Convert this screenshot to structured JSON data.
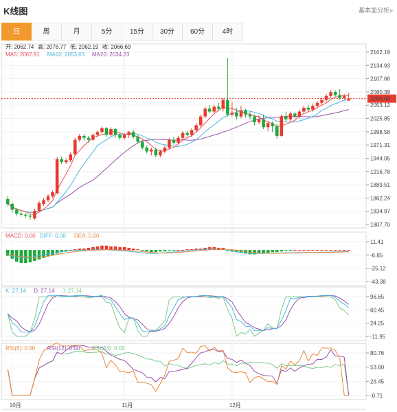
{
  "header": {
    "title": "K线图",
    "link": "基本面分析»"
  },
  "tabs": [
    {
      "label": "日",
      "active": true
    },
    {
      "label": "周",
      "active": false
    },
    {
      "label": "月",
      "active": false
    },
    {
      "label": "5分",
      "active": false
    },
    {
      "label": "15分",
      "active": false
    },
    {
      "label": "30分",
      "active": false
    },
    {
      "label": "60分",
      "active": false
    },
    {
      "label": "4时",
      "active": false
    }
  ],
  "colors": {
    "up": "#e63b2e",
    "down": "#20a83a",
    "ma5": "#e84d5b",
    "ma10": "#48b7e0",
    "ma20": "#9b4fa8",
    "macd": "#e84d5b",
    "diff": "#48b7e0",
    "dea": "#e8883a",
    "k": "#48b7e0",
    "d": "#9b4fa8",
    "j": "#7cc98a",
    "rsi6": "#e8883a",
    "rsi12": "#9b4fa8",
    "rsi24": "#7cc98a",
    "accent": "#f29a2e"
  },
  "legend": {
    "ohlc": [
      {
        "label": "开: 2062.74"
      },
      {
        "label": "高: 2078.77"
      },
      {
        "label": "低: 2062.19"
      },
      {
        "label": "收: 2066.69"
      }
    ],
    "ma": [
      {
        "label": "MA5: 2067.91"
      },
      {
        "label": "MA10: 2053.63"
      },
      {
        "label": "MA20: 2034.23"
      }
    ],
    "macd": [
      {
        "label": "MACD: 0.00"
      },
      {
        "label": "DIFF: 0.00"
      },
      {
        "label": "DEA: 0.00"
      }
    ],
    "kdj": [
      {
        "label": "K: 27.14"
      },
      {
        "label": "D: 27.14"
      },
      {
        "label": "J: 27.14"
      }
    ],
    "rsi": [
      {
        "label": "RSI(6): 0.00"
      },
      {
        "label": "RSI(12): 0.00"
      },
      {
        "label": "RSI(24): 0.00"
      }
    ]
  },
  "chart_data": [
    {
      "type": "candlestick",
      "ylim": [
        1807.7,
        2162.19
      ],
      "ytick_labels": [
        "2162.19",
        "2134.93",
        "2107.66",
        "2080.39",
        "2053.12",
        "2025.85",
        "1998.58",
        "1971.31",
        "1944.05",
        "1916.78",
        "1889.51",
        "1862.24",
        "1834.97",
        "1807.70"
      ],
      "last_price": "2066.69",
      "last_price_value": 2066.69,
      "xtick_labels": [
        "10月",
        "11月",
        "12月"
      ],
      "xtick_index": [
        1,
        26,
        50
      ],
      "candles": [
        [
          1860,
          1850,
          1866,
          1845
        ],
        [
          1850,
          1838,
          1854,
          1832
        ],
        [
          1838,
          1830,
          1842,
          1826
        ],
        [
          1830,
          1828,
          1834,
          1824
        ],
        [
          1828,
          1826,
          1832,
          1822
        ],
        [
          1826,
          1824,
          1830,
          1818
        ],
        [
          1820,
          1836,
          1840,
          1818
        ],
        [
          1836,
          1852,
          1856,
          1834
        ],
        [
          1850,
          1858,
          1862,
          1846
        ],
        [
          1858,
          1866,
          1870,
          1854
        ],
        [
          1866,
          1874,
          1878,
          1862
        ],
        [
          1872,
          1942,
          1946,
          1870
        ],
        [
          1942,
          1936,
          1948,
          1932
        ],
        [
          1936,
          1940,
          1944,
          1932
        ],
        [
          1940,
          1952,
          1956,
          1936
        ],
        [
          1952,
          1982,
          1986,
          1950
        ],
        [
          1982,
          1990,
          1994,
          1978
        ],
        [
          1990,
          1986,
          1994,
          1980
        ],
        [
          1986,
          1982,
          1990,
          1976
        ],
        [
          1982,
          1992,
          1996,
          1980
        ],
        [
          1992,
          1998,
          2002,
          1988
        ],
        [
          1998,
          2006,
          2010,
          1994
        ],
        [
          2006,
          1992,
          2008,
          1988
        ],
        [
          1992,
          2004,
          2008,
          1990
        ],
        [
          2004,
          1992,
          2006,
          1986
        ],
        [
          1992,
          1986,
          1996,
          1982
        ],
        [
          1986,
          1992,
          1996,
          1982
        ],
        [
          1992,
          1998,
          2000,
          1986
        ],
        [
          1998,
          1988,
          2002,
          1984
        ],
        [
          1988,
          1978,
          1992,
          1974
        ],
        [
          1978,
          1966,
          1982,
          1962
        ],
        [
          1966,
          1958,
          1970,
          1954
        ],
        [
          1958,
          1962,
          1966,
          1950
        ],
        [
          1962,
          1950,
          1966,
          1946
        ],
        [
          1950,
          1958,
          1962,
          1946
        ],
        [
          1958,
          1966,
          1970,
          1954
        ],
        [
          1966,
          1982,
          1986,
          1962
        ],
        [
          1982,
          1976,
          1988,
          1972
        ],
        [
          1976,
          1986,
          1990,
          1972
        ],
        [
          1986,
          1996,
          2000,
          1982
        ],
        [
          1996,
          1992,
          2000,
          1988
        ],
        [
          1992,
          2002,
          2006,
          1988
        ],
        [
          2002,
          2012,
          2016,
          1998
        ],
        [
          2012,
          2030,
          2034,
          2008
        ],
        [
          2030,
          2046,
          2050,
          2026
        ],
        [
          2046,
          2040,
          2054,
          2036
        ],
        [
          2040,
          2050,
          2054,
          2036
        ],
        [
          2050,
          2046,
          2058,
          2042
        ],
        [
          2046,
          2064,
          2068,
          2040
        ],
        [
          2064,
          2034,
          2150,
          2030
        ],
        [
          2034,
          2038,
          2060,
          2030
        ],
        [
          2038,
          2030,
          2048,
          2024
        ],
        [
          2030,
          2042,
          2052,
          2026
        ],
        [
          2042,
          2034,
          2046,
          2028
        ],
        [
          2034,
          2030,
          2040,
          2024
        ],
        [
          2030,
          2018,
          2034,
          2012
        ],
        [
          2018,
          2024,
          2032,
          2014
        ],
        [
          2024,
          2008,
          2034,
          2004
        ],
        [
          2008,
          2016,
          2020,
          2000
        ],
        [
          2016,
          2010,
          2020,
          1998
        ],
        [
          2010,
          1990,
          2014,
          1984
        ],
        [
          1990,
          2030,
          2034,
          1988
        ],
        [
          2030,
          2024,
          2040,
          2020
        ],
        [
          2024,
          2036,
          2040,
          2020
        ],
        [
          2036,
          2030,
          2040,
          2026
        ],
        [
          2030,
          2040,
          2044,
          2026
        ],
        [
          2040,
          2048,
          2052,
          2036
        ],
        [
          2048,
          2044,
          2054,
          2040
        ],
        [
          2044,
          2052,
          2056,
          2040
        ],
        [
          2052,
          2058,
          2062,
          2048
        ],
        [
          2058,
          2064,
          2068,
          2054
        ],
        [
          2064,
          2072,
          2076,
          2060
        ],
        [
          2072,
          2080,
          2084,
          2068
        ],
        [
          2080,
          2074,
          2084,
          2070
        ],
        [
          2074,
          2068,
          2086,
          2064
        ],
        [
          2068,
          2072,
          2076,
          2064
        ],
        [
          2062.74,
          2066.69,
          2078.77,
          2062.19
        ]
      ],
      "ma5_ends": [
        2066.69,
        2067.91
      ],
      "ma10_ends": [
        2053.63
      ],
      "ma20_ends": [
        2034.23
      ]
    },
    {
      "type": "bar",
      "name": "MACD",
      "ylim": [
        -43.38,
        11.41
      ],
      "ytick_labels": [
        "11.41",
        "-6.85",
        "-25.12",
        "-43.38"
      ],
      "values": [
        -8,
        -12,
        -16,
        -18,
        -18,
        -17,
        -15,
        -13,
        -11,
        -9,
        -7,
        -5,
        -3,
        -2,
        0,
        1,
        2,
        2,
        3,
        4,
        5,
        6,
        6,
        5,
        5,
        4,
        4,
        3,
        2,
        1,
        -1,
        -2,
        -3,
        -3,
        -2,
        -2,
        -1,
        -1,
        0,
        0,
        1,
        1,
        2,
        2,
        3,
        4,
        4,
        3,
        3,
        -1,
        -2,
        -3,
        -4,
        -5,
        -6,
        -6,
        -5,
        -5,
        -4,
        -3,
        -3,
        -2,
        -1,
        -1,
        0,
        0,
        0,
        0,
        0,
        0,
        0,
        0,
        0,
        0,
        0,
        0,
        0
      ]
    },
    {
      "type": "line",
      "name": "KDJ",
      "ylim": [
        -11.95,
        96.65
      ],
      "ytick_labels": [
        "96.65",
        "60.45",
        "24.25",
        "-11.95"
      ]
    },
    {
      "type": "line",
      "name": "RSI",
      "ylim": [
        -0.71,
        80.76
      ],
      "ytick_labels": [
        "80.76",
        "53.60",
        "26.45",
        "-0.71"
      ]
    }
  ]
}
